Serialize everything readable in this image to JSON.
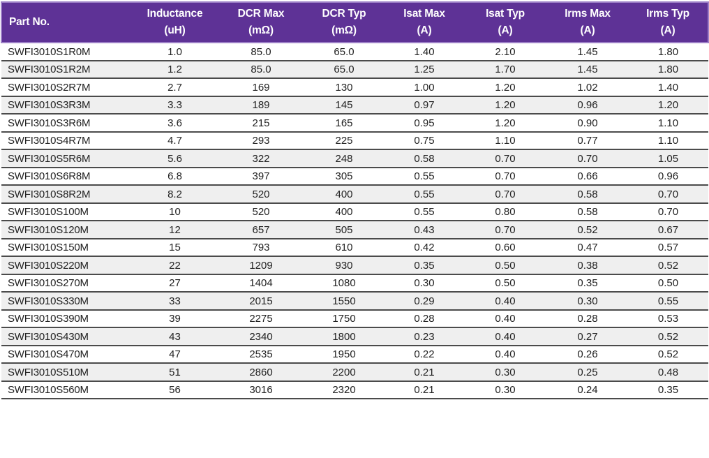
{
  "table": {
    "columns": [
      {
        "label": "Part No.",
        "unit": ""
      },
      {
        "label": "Inductance",
        "unit": "(uH)"
      },
      {
        "label": "DCR Max",
        "unit": "(mΩ)"
      },
      {
        "label": "DCR Typ",
        "unit": "(mΩ)"
      },
      {
        "label": "Isat Max",
        "unit": "(A)"
      },
      {
        "label": "Isat Typ",
        "unit": "(A)"
      },
      {
        "label": "Irms Max",
        "unit": "(A)"
      },
      {
        "label": "Irms Typ",
        "unit": "(A)"
      }
    ],
    "rows": [
      [
        "SWFI3010S1R0M",
        "1.0",
        "85.0",
        "65.0",
        "1.40",
        "2.10",
        "1.45",
        "1.80"
      ],
      [
        "SWFI3010S1R2M",
        "1.2",
        "85.0",
        "65.0",
        "1.25",
        "1.70",
        "1.45",
        "1.80"
      ],
      [
        "SWFI3010S2R7M",
        "2.7",
        "169",
        "130",
        "1.00",
        "1.20",
        "1.02",
        "1.40"
      ],
      [
        "SWFI3010S3R3M",
        "3.3",
        "189",
        "145",
        "0.97",
        "1.20",
        "0.96",
        "1.20"
      ],
      [
        "SWFI3010S3R6M",
        "3.6",
        "215",
        "165",
        "0.95",
        "1.20",
        "0.90",
        "1.10"
      ],
      [
        "SWFI3010S4R7M",
        "4.7",
        "293",
        "225",
        "0.75",
        "1.10",
        "0.77",
        "1.10"
      ],
      [
        "SWFI3010S5R6M",
        "5.6",
        "322",
        "248",
        "0.58",
        "0.70",
        "0.70",
        "1.05"
      ],
      [
        "SWFI3010S6R8M",
        "6.8",
        "397",
        "305",
        "0.55",
        "0.70",
        "0.66",
        "0.96"
      ],
      [
        "SWFI3010S8R2M",
        "8.2",
        "520",
        "400",
        "0.55",
        "0.70",
        "0.58",
        "0.70"
      ],
      [
        "SWFI3010S100M",
        "10",
        "520",
        "400",
        "0.55",
        "0.80",
        "0.58",
        "0.70"
      ],
      [
        "SWFI3010S120M",
        "12",
        "657",
        "505",
        "0.43",
        "0.70",
        "0.52",
        "0.67"
      ],
      [
        "SWFI3010S150M",
        "15",
        "793",
        "610",
        "0.42",
        "0.60",
        "0.47",
        "0.57"
      ],
      [
        "SWFI3010S220M",
        "22",
        "1209",
        "930",
        "0.35",
        "0.50",
        "0.38",
        "0.52"
      ],
      [
        "SWFI3010S270M",
        "27",
        "1404",
        "1080",
        "0.30",
        "0.50",
        "0.35",
        "0.50"
      ],
      [
        "SWFI3010S330M",
        "33",
        "2015",
        "1550",
        "0.29",
        "0.40",
        "0.30",
        "0.55"
      ],
      [
        "SWFI3010S390M",
        "39",
        "2275",
        "1750",
        "0.28",
        "0.40",
        "0.28",
        "0.53"
      ],
      [
        "SWFI3010S430M",
        "43",
        "2340",
        "1800",
        "0.23",
        "0.40",
        "0.27",
        "0.52"
      ],
      [
        "SWFI3010S470M",
        "47",
        "2535",
        "1950",
        "0.22",
        "0.40",
        "0.26",
        "0.52"
      ],
      [
        "SWFI3010S510M",
        "51",
        "2860",
        "2200",
        "0.21",
        "0.30",
        "0.25",
        "0.48"
      ],
      [
        "SWFI3010S560M",
        "56",
        "3016",
        "2320",
        "0.21",
        "0.30",
        "0.24",
        "0.35"
      ]
    ],
    "shaded_row_indices": [
      1,
      3,
      6,
      8,
      10,
      12,
      14,
      16,
      18
    ]
  },
  "colors": {
    "header_bg": "#5e3296",
    "header_border": "#9d80c7",
    "header_text": "#ffffff",
    "row_shaded_bg": "#efefef",
    "row_separator": "#4b4b4b",
    "body_text": "#222222"
  }
}
